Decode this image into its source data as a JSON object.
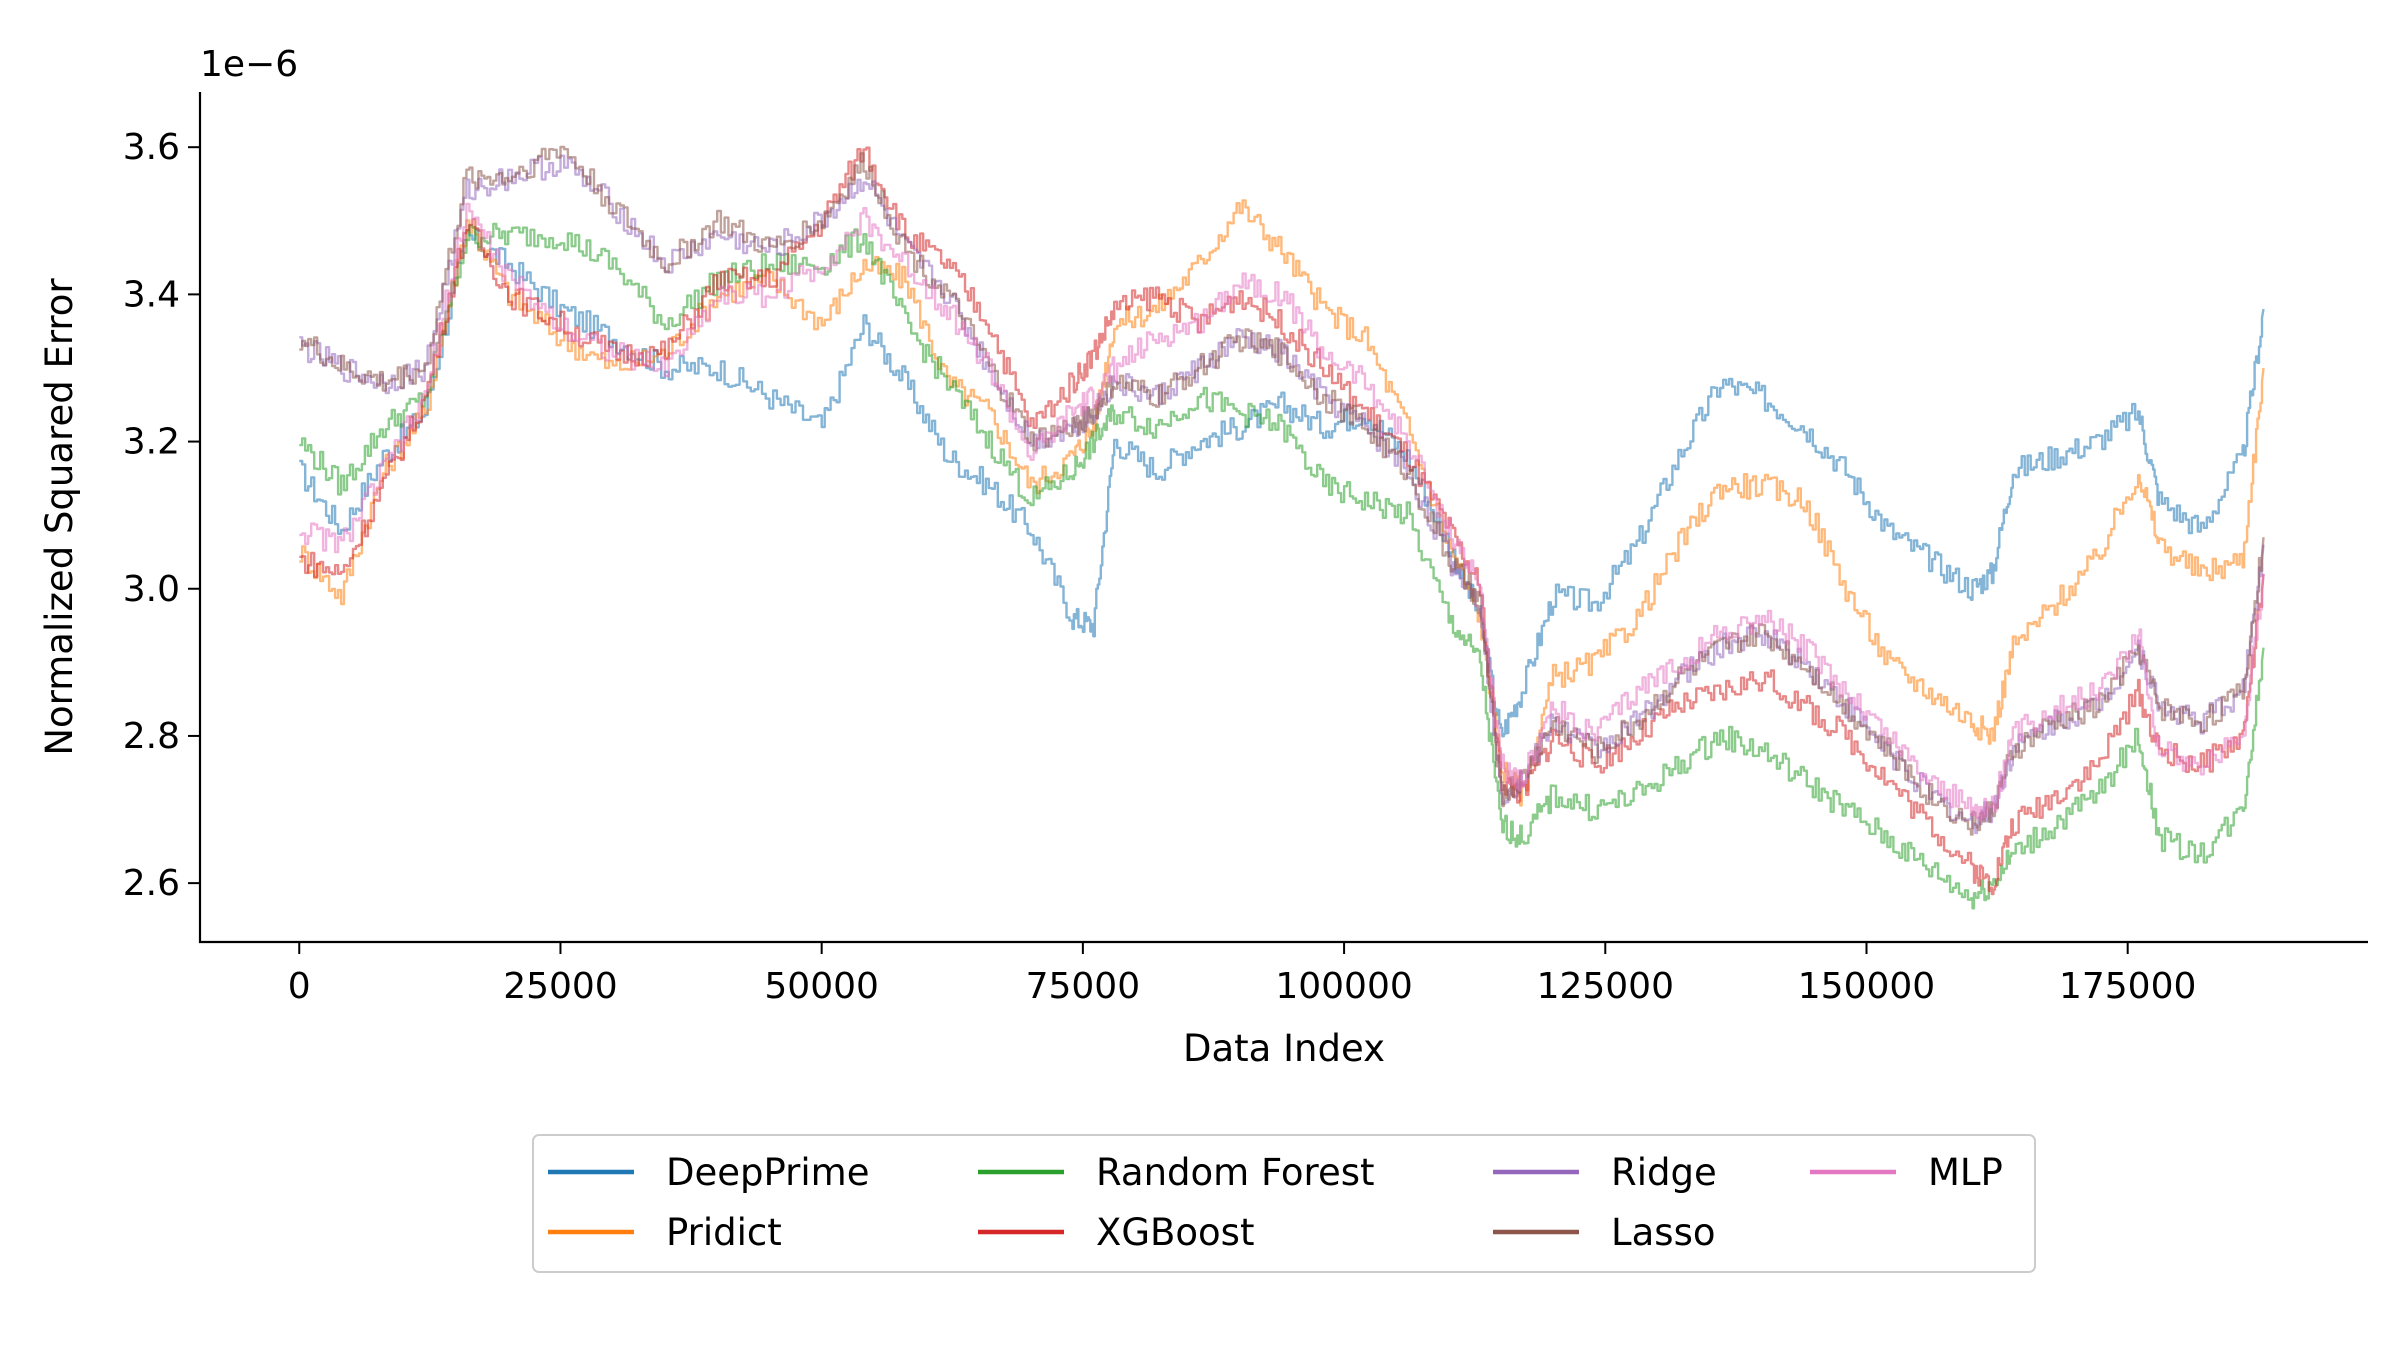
{
  "chart_data": {
    "type": "line",
    "xlabel": "Data Index",
    "ylabel": "Normalized Squared Error",
    "y_offset_label": "1e−6",
    "xlim": [
      -9500,
      198000
    ],
    "ylim": [
      2.52,
      3.675
    ],
    "xticks": [
      0,
      25000,
      50000,
      75000,
      100000,
      125000,
      150000,
      175000
    ],
    "xtick_labels": [
      "0",
      "25000",
      "50000",
      "75000",
      "100000",
      "125000",
      "150000",
      "175000"
    ],
    "yticks": [
      2.6,
      2.8,
      3.0,
      3.2,
      3.4,
      3.6
    ],
    "ytick_labels": [
      "2.6",
      "2.8",
      "3.0",
      "3.2",
      "3.4",
      "3.6"
    ],
    "grid": false,
    "legend_position": "bottom-center",
    "legend_columns": 4,
    "line_alpha": 0.55,
    "x": [
      0,
      4000,
      8000,
      12000,
      16000,
      20000,
      25000,
      30000,
      35000,
      40000,
      45000,
      50000,
      54000,
      58000,
      62000,
      66000,
      70000,
      74000,
      76000,
      78000,
      82000,
      86000,
      90000,
      94000,
      98000,
      102000,
      106000,
      110000,
      113000,
      115000,
      117000,
      120000,
      124000,
      128000,
      132000,
      136000,
      140000,
      144000,
      148000,
      152000,
      156000,
      160000,
      162000,
      164000,
      168000,
      172000,
      176000,
      178000,
      182000,
      186000,
      188000
    ],
    "series": [
      {
        "name": "DeepPrime",
        "color": "#1f77b4",
        "values": [
          3.16,
          3.08,
          3.18,
          3.24,
          3.48,
          3.44,
          3.38,
          3.34,
          3.3,
          3.3,
          3.26,
          3.22,
          3.36,
          3.28,
          3.18,
          3.14,
          3.08,
          2.96,
          2.95,
          3.2,
          3.16,
          3.2,
          3.22,
          3.25,
          3.22,
          3.24,
          3.18,
          3.06,
          2.96,
          2.8,
          2.86,
          2.99,
          2.98,
          3.06,
          3.18,
          3.28,
          3.26,
          3.22,
          3.16,
          3.08,
          3.04,
          3.0,
          3.02,
          3.16,
          3.18,
          3.2,
          3.24,
          3.12,
          3.08,
          3.18,
          3.38
        ]
      },
      {
        "name": "Pridict",
        "color": "#ff7f0e",
        "values": [
          3.05,
          2.99,
          3.16,
          3.24,
          3.5,
          3.4,
          3.34,
          3.3,
          3.32,
          3.4,
          3.42,
          3.36,
          3.44,
          3.42,
          3.28,
          3.24,
          3.14,
          3.18,
          3.22,
          3.36,
          3.38,
          3.44,
          3.52,
          3.46,
          3.38,
          3.34,
          3.22,
          3.06,
          2.96,
          2.76,
          2.72,
          2.88,
          2.9,
          2.96,
          3.06,
          3.14,
          3.14,
          3.12,
          3.0,
          2.9,
          2.86,
          2.82,
          2.8,
          2.92,
          2.98,
          3.04,
          3.16,
          3.06,
          3.02,
          3.04,
          3.3
        ]
      },
      {
        "name": "Random Forest",
        "color": "#2ca02c",
        "values": [
          3.2,
          3.14,
          3.22,
          3.26,
          3.48,
          3.48,
          3.48,
          3.44,
          3.36,
          3.42,
          3.44,
          3.44,
          3.48,
          3.36,
          3.28,
          3.2,
          3.12,
          3.16,
          3.2,
          3.24,
          3.22,
          3.26,
          3.24,
          3.22,
          3.14,
          3.12,
          3.1,
          2.96,
          2.9,
          2.68,
          2.66,
          2.72,
          2.7,
          2.72,
          2.76,
          2.8,
          2.78,
          2.74,
          2.7,
          2.66,
          2.62,
          2.58,
          2.6,
          2.64,
          2.68,
          2.72,
          2.8,
          2.66,
          2.64,
          2.7,
          2.92
        ]
      },
      {
        "name": "XGBoost",
        "color": "#d62728",
        "values": [
          3.04,
          3.02,
          3.14,
          3.26,
          3.5,
          3.4,
          3.36,
          3.32,
          3.32,
          3.42,
          3.42,
          3.5,
          3.6,
          3.48,
          3.44,
          3.36,
          3.22,
          3.28,
          3.32,
          3.38,
          3.4,
          3.36,
          3.4,
          3.36,
          3.3,
          3.24,
          3.18,
          3.08,
          3.0,
          2.74,
          2.72,
          2.8,
          2.76,
          2.8,
          2.84,
          2.86,
          2.88,
          2.84,
          2.8,
          2.74,
          2.68,
          2.62,
          2.6,
          2.68,
          2.72,
          2.76,
          2.86,
          2.78,
          2.76,
          2.8,
          3.02
        ]
      },
      {
        "name": "Ridge",
        "color": "#9467bd",
        "values": [
          3.33,
          3.3,
          3.28,
          3.3,
          3.54,
          3.56,
          3.58,
          3.52,
          3.44,
          3.48,
          3.46,
          3.5,
          3.56,
          3.46,
          3.4,
          3.3,
          3.2,
          3.22,
          3.24,
          3.28,
          3.26,
          3.3,
          3.34,
          3.32,
          3.26,
          3.22,
          3.16,
          3.04,
          2.98,
          2.72,
          2.74,
          2.82,
          2.78,
          2.82,
          2.88,
          2.92,
          2.94,
          2.9,
          2.84,
          2.78,
          2.72,
          2.68,
          2.7,
          2.78,
          2.82,
          2.84,
          2.92,
          2.84,
          2.82,
          2.86,
          3.06
        ]
      },
      {
        "name": "Lasso",
        "color": "#8c564b",
        "values": [
          3.34,
          3.3,
          3.28,
          3.3,
          3.56,
          3.56,
          3.6,
          3.52,
          3.44,
          3.5,
          3.46,
          3.5,
          3.58,
          3.46,
          3.4,
          3.3,
          3.2,
          3.22,
          3.24,
          3.28,
          3.26,
          3.3,
          3.34,
          3.32,
          3.26,
          3.22,
          3.16,
          3.04,
          2.98,
          2.72,
          2.74,
          2.82,
          2.78,
          2.82,
          2.88,
          2.92,
          2.94,
          2.9,
          2.84,
          2.78,
          2.72,
          2.68,
          2.7,
          2.78,
          2.82,
          2.84,
          2.92,
          2.84,
          2.82,
          2.86,
          3.07
        ]
      },
      {
        "name": "MLP",
        "color": "#e377c2",
        "values": [
          3.08,
          3.06,
          3.16,
          3.26,
          3.52,
          3.42,
          3.36,
          3.32,
          3.3,
          3.4,
          3.4,
          3.44,
          3.5,
          3.44,
          3.38,
          3.3,
          3.18,
          3.24,
          3.26,
          3.3,
          3.34,
          3.36,
          3.42,
          3.4,
          3.32,
          3.28,
          3.2,
          3.08,
          3.0,
          2.76,
          2.74,
          2.84,
          2.8,
          2.86,
          2.9,
          2.94,
          2.96,
          2.92,
          2.86,
          2.8,
          2.74,
          2.7,
          2.7,
          2.8,
          2.84,
          2.86,
          2.94,
          2.78,
          2.76,
          2.8,
          3.02
        ]
      }
    ]
  }
}
